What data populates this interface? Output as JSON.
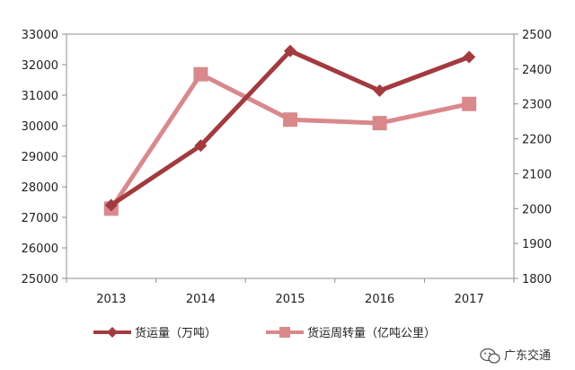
{
  "chart_data": {
    "type": "line",
    "categories": [
      "2013",
      "2014",
      "2015",
      "2016",
      "2017"
    ],
    "y_left": {
      "min": 25000,
      "max": 33000,
      "step": 1000
    },
    "y_right": {
      "min": 1800,
      "max": 2500,
      "step": 100
    },
    "grid": false,
    "legend": "bottom",
    "series": [
      {
        "name": "货运量（万吨）",
        "axis": "left",
        "marker": "diamond",
        "color": "#a23b3f",
        "values": [
          27400,
          29350,
          32450,
          31150,
          32250
        ]
      },
      {
        "name": "货运周转量（亿吨公里）",
        "axis": "right",
        "marker": "square",
        "color": "#d9898b",
        "values": [
          2000,
          2385,
          2255,
          2245,
          2300
        ]
      }
    ]
  },
  "watermark": {
    "text": "广东交通",
    "icon": "wechat-icon"
  }
}
